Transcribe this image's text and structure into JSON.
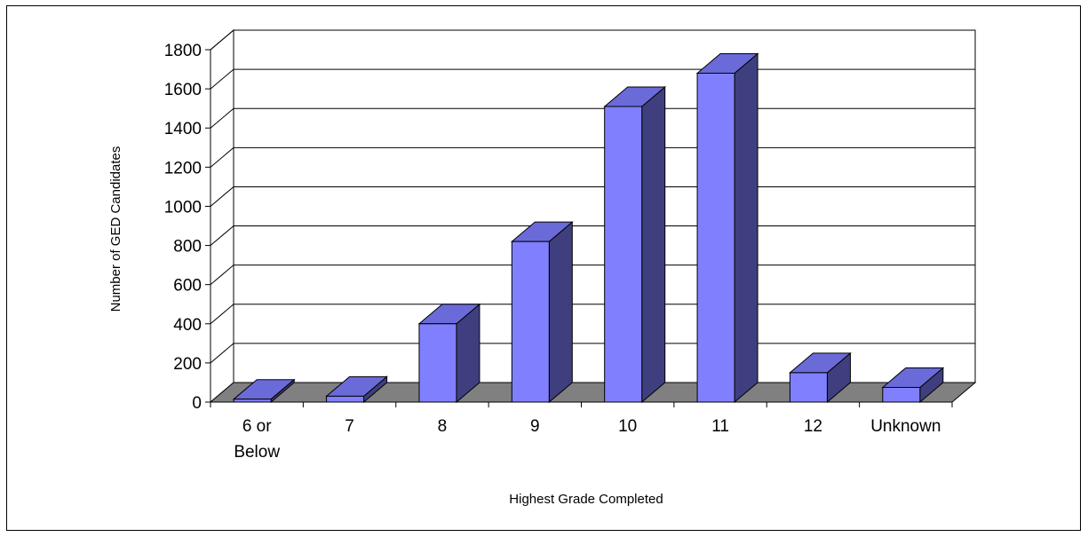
{
  "chart_data": {
    "type": "bar",
    "categories": [
      "6 or Below",
      "7",
      "8",
      "9",
      "10",
      "11",
      "12",
      "Unknown"
    ],
    "category_lines": [
      [
        "6 or",
        "Below"
      ],
      [
        "7"
      ],
      [
        "8"
      ],
      [
        "9"
      ],
      [
        "10"
      ],
      [
        "11"
      ],
      [
        "12"
      ],
      [
        "Unknown"
      ]
    ],
    "values": [
      15,
      30,
      400,
      820,
      1510,
      1680,
      150,
      75
    ],
    "title": "",
    "xlabel": "Highest Grade Completed",
    "ylabel": "Number of GED Candidates",
    "ylim": [
      0,
      1800
    ],
    "yticks": [
      "0",
      "200",
      "400",
      "600",
      "800",
      "1000",
      "1200",
      "1400",
      "1600",
      "1800"
    ],
    "grid": true,
    "style": "3d-column",
    "colors": {
      "front": "#8080ff",
      "side": "#3f3f7f",
      "top": "#6a6ad8",
      "floor": "#808080"
    }
  }
}
